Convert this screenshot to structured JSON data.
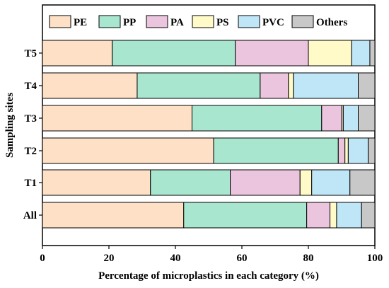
{
  "chart_data": {
    "type": "bar",
    "orientation": "horizontal",
    "stacked": true,
    "xlabel": "Percentage of microplastics in each category (%)",
    "ylabel": "Sampling sites",
    "xlim": [
      0,
      100
    ],
    "x_ticks": [
      0,
      20,
      40,
      60,
      80,
      100
    ],
    "categories": [
      "T5",
      "T4",
      "T3",
      "T2",
      "T1",
      "All"
    ],
    "series": [
      {
        "name": "PE",
        "color": "#fde0c5",
        "values": [
          21.0,
          28.5,
          45.0,
          51.5,
          32.5,
          42.5
        ]
      },
      {
        "name": "PP",
        "color": "#a8e6cf",
        "values": [
          37.0,
          37.0,
          39.0,
          37.5,
          24.0,
          37.0
        ]
      },
      {
        "name": "PA",
        "color": "#eac5dd",
        "values": [
          22.0,
          8.5,
          6.0,
          2.0,
          21.0,
          7.0
        ]
      },
      {
        "name": "PS",
        "color": "#fffac8",
        "values": [
          13.0,
          1.5,
          0.5,
          1.0,
          3.5,
          2.0
        ]
      },
      {
        "name": "PVC",
        "color": "#bfe6f7",
        "values": [
          5.5,
          19.5,
          4.5,
          6.0,
          11.5,
          7.5
        ]
      },
      {
        "name": "Others",
        "color": "#c8c8c8",
        "values": [
          1.5,
          5.0,
          5.0,
          2.0,
          7.5,
          4.0
        ]
      }
    ],
    "legend_position": "top",
    "grid": false
  }
}
